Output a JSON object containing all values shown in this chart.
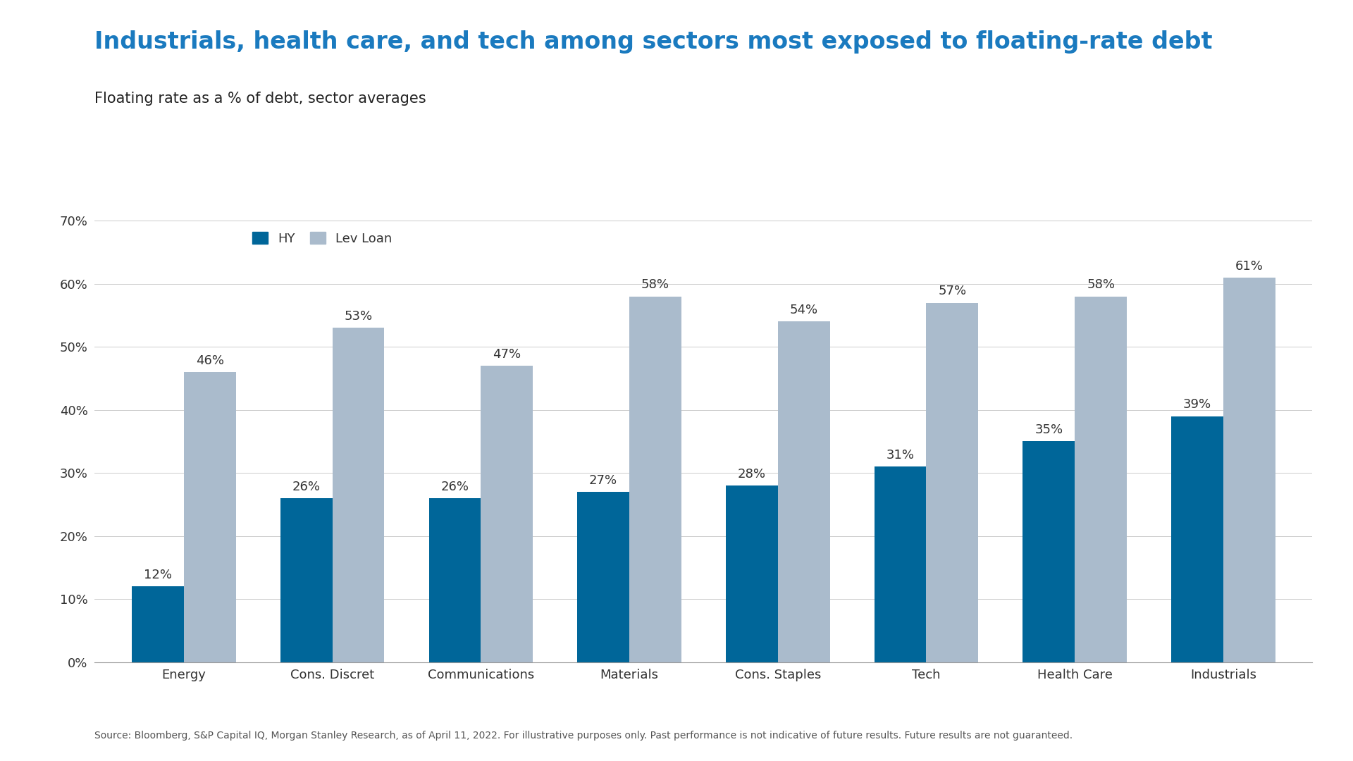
{
  "title": "Industrials, health care, and tech among sectors most exposed to floating-rate debt",
  "subtitle": "Floating rate as a % of debt, sector averages",
  "categories": [
    "Energy",
    "Cons. Discret",
    "Communications",
    "Materials",
    "Cons. Staples",
    "Tech",
    "Health Care",
    "Industrials"
  ],
  "hy_values": [
    12,
    26,
    26,
    27,
    28,
    31,
    35,
    39
  ],
  "lev_loan_values": [
    46,
    53,
    47,
    58,
    54,
    57,
    58,
    61
  ],
  "hy_color": "#006699",
  "lev_loan_color": "#AABBCC",
  "title_color": "#1a7abf",
  "subtitle_color": "#222222",
  "background_color": "#FFFFFF",
  "bar_width": 0.35,
  "ylim": [
    0,
    70
  ],
  "yticks": [
    0,
    10,
    20,
    30,
    40,
    50,
    60,
    70
  ],
  "ytick_labels": [
    "0%",
    "10%",
    "20%",
    "30%",
    "40%",
    "50%",
    "60%",
    "70%"
  ],
  "legend_labels": [
    "HY",
    "Lev Loan"
  ],
  "footnote": "Source: Bloomberg, S&P Capital IQ, Morgan Stanley Research, as of April 11, 2022. For illustrative purposes only. Past performance is not indicative of future results. Future results are not guaranteed.",
  "title_fontsize": 24,
  "subtitle_fontsize": 15,
  "tick_label_fontsize": 13,
  "bar_label_fontsize": 13,
  "legend_fontsize": 13,
  "footnote_fontsize": 10
}
